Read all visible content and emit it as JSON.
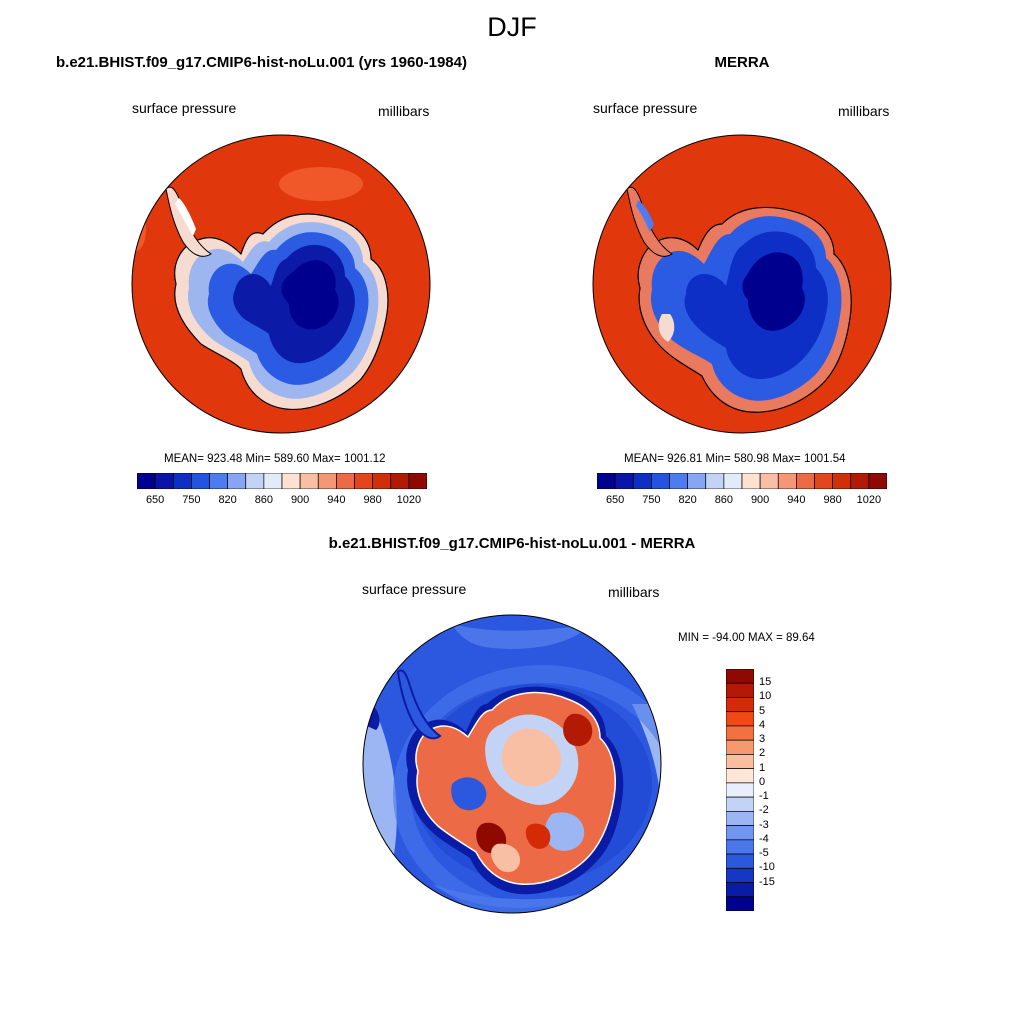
{
  "figure": {
    "title": "DJF"
  },
  "colors": {
    "cb_top": [
      "#00008f",
      "#0a14a8",
      "#0e2fc6",
      "#2453e0",
      "#4f7bf0",
      "#86a6f4",
      "#c3d3f6",
      "#e2ecf9",
      "#fde2d2",
      "#f9bfa4",
      "#f49777",
      "#ec6a45",
      "#e3461c",
      "#d02f0a",
      "#b31a05",
      "#8e0a00"
    ],
    "cb_diff": [
      "#8e0a00",
      "#b31a05",
      "#d52a07",
      "#ef4a16",
      "#f4703f",
      "#f69870",
      "#f9be9f",
      "#fde6d5",
      "#e8eefb",
      "#c3d3f6",
      "#9bb6f2",
      "#7196ee",
      "#4a76ea",
      "#2c58e0",
      "#1537c4",
      "#0a1ba5",
      "#00008f"
    ]
  },
  "panels": {
    "model": {
      "title": "b.e21.BHIST.f09_g17.CMIP6-hist-noLu.001 (yrs 1960-1984)",
      "left_label": "surface pressure",
      "right_label": "millibars",
      "stats": "MEAN= 923.48  Min= 589.60  Max= 1001.12",
      "ticks": [
        "650",
        "750",
        "820",
        "860",
        "900",
        "940",
        "980",
        "1020"
      ]
    },
    "obs": {
      "title": "MERRA",
      "left_label": "surface pressure",
      "right_label": "millibars",
      "stats": "MEAN= 926.81  Min= 580.98  Max= 1001.54",
      "ticks": [
        "650",
        "750",
        "820",
        "860",
        "900",
        "940",
        "980",
        "1020"
      ]
    },
    "diff": {
      "title": "b.e21.BHIST.f09_g17.CMIP6-hist-noLu.001 - MERRA",
      "left_label": "surface pressure",
      "right_label": "millibars",
      "stats": "MIN = -94.00 MAX =  89.64",
      "ticks": [
        "15",
        "10",
        "5",
        "4",
        "3",
        "2",
        "1",
        "0",
        "-1",
        "-2",
        "-3",
        "-4",
        "-5",
        "-10",
        "-15"
      ]
    }
  }
}
